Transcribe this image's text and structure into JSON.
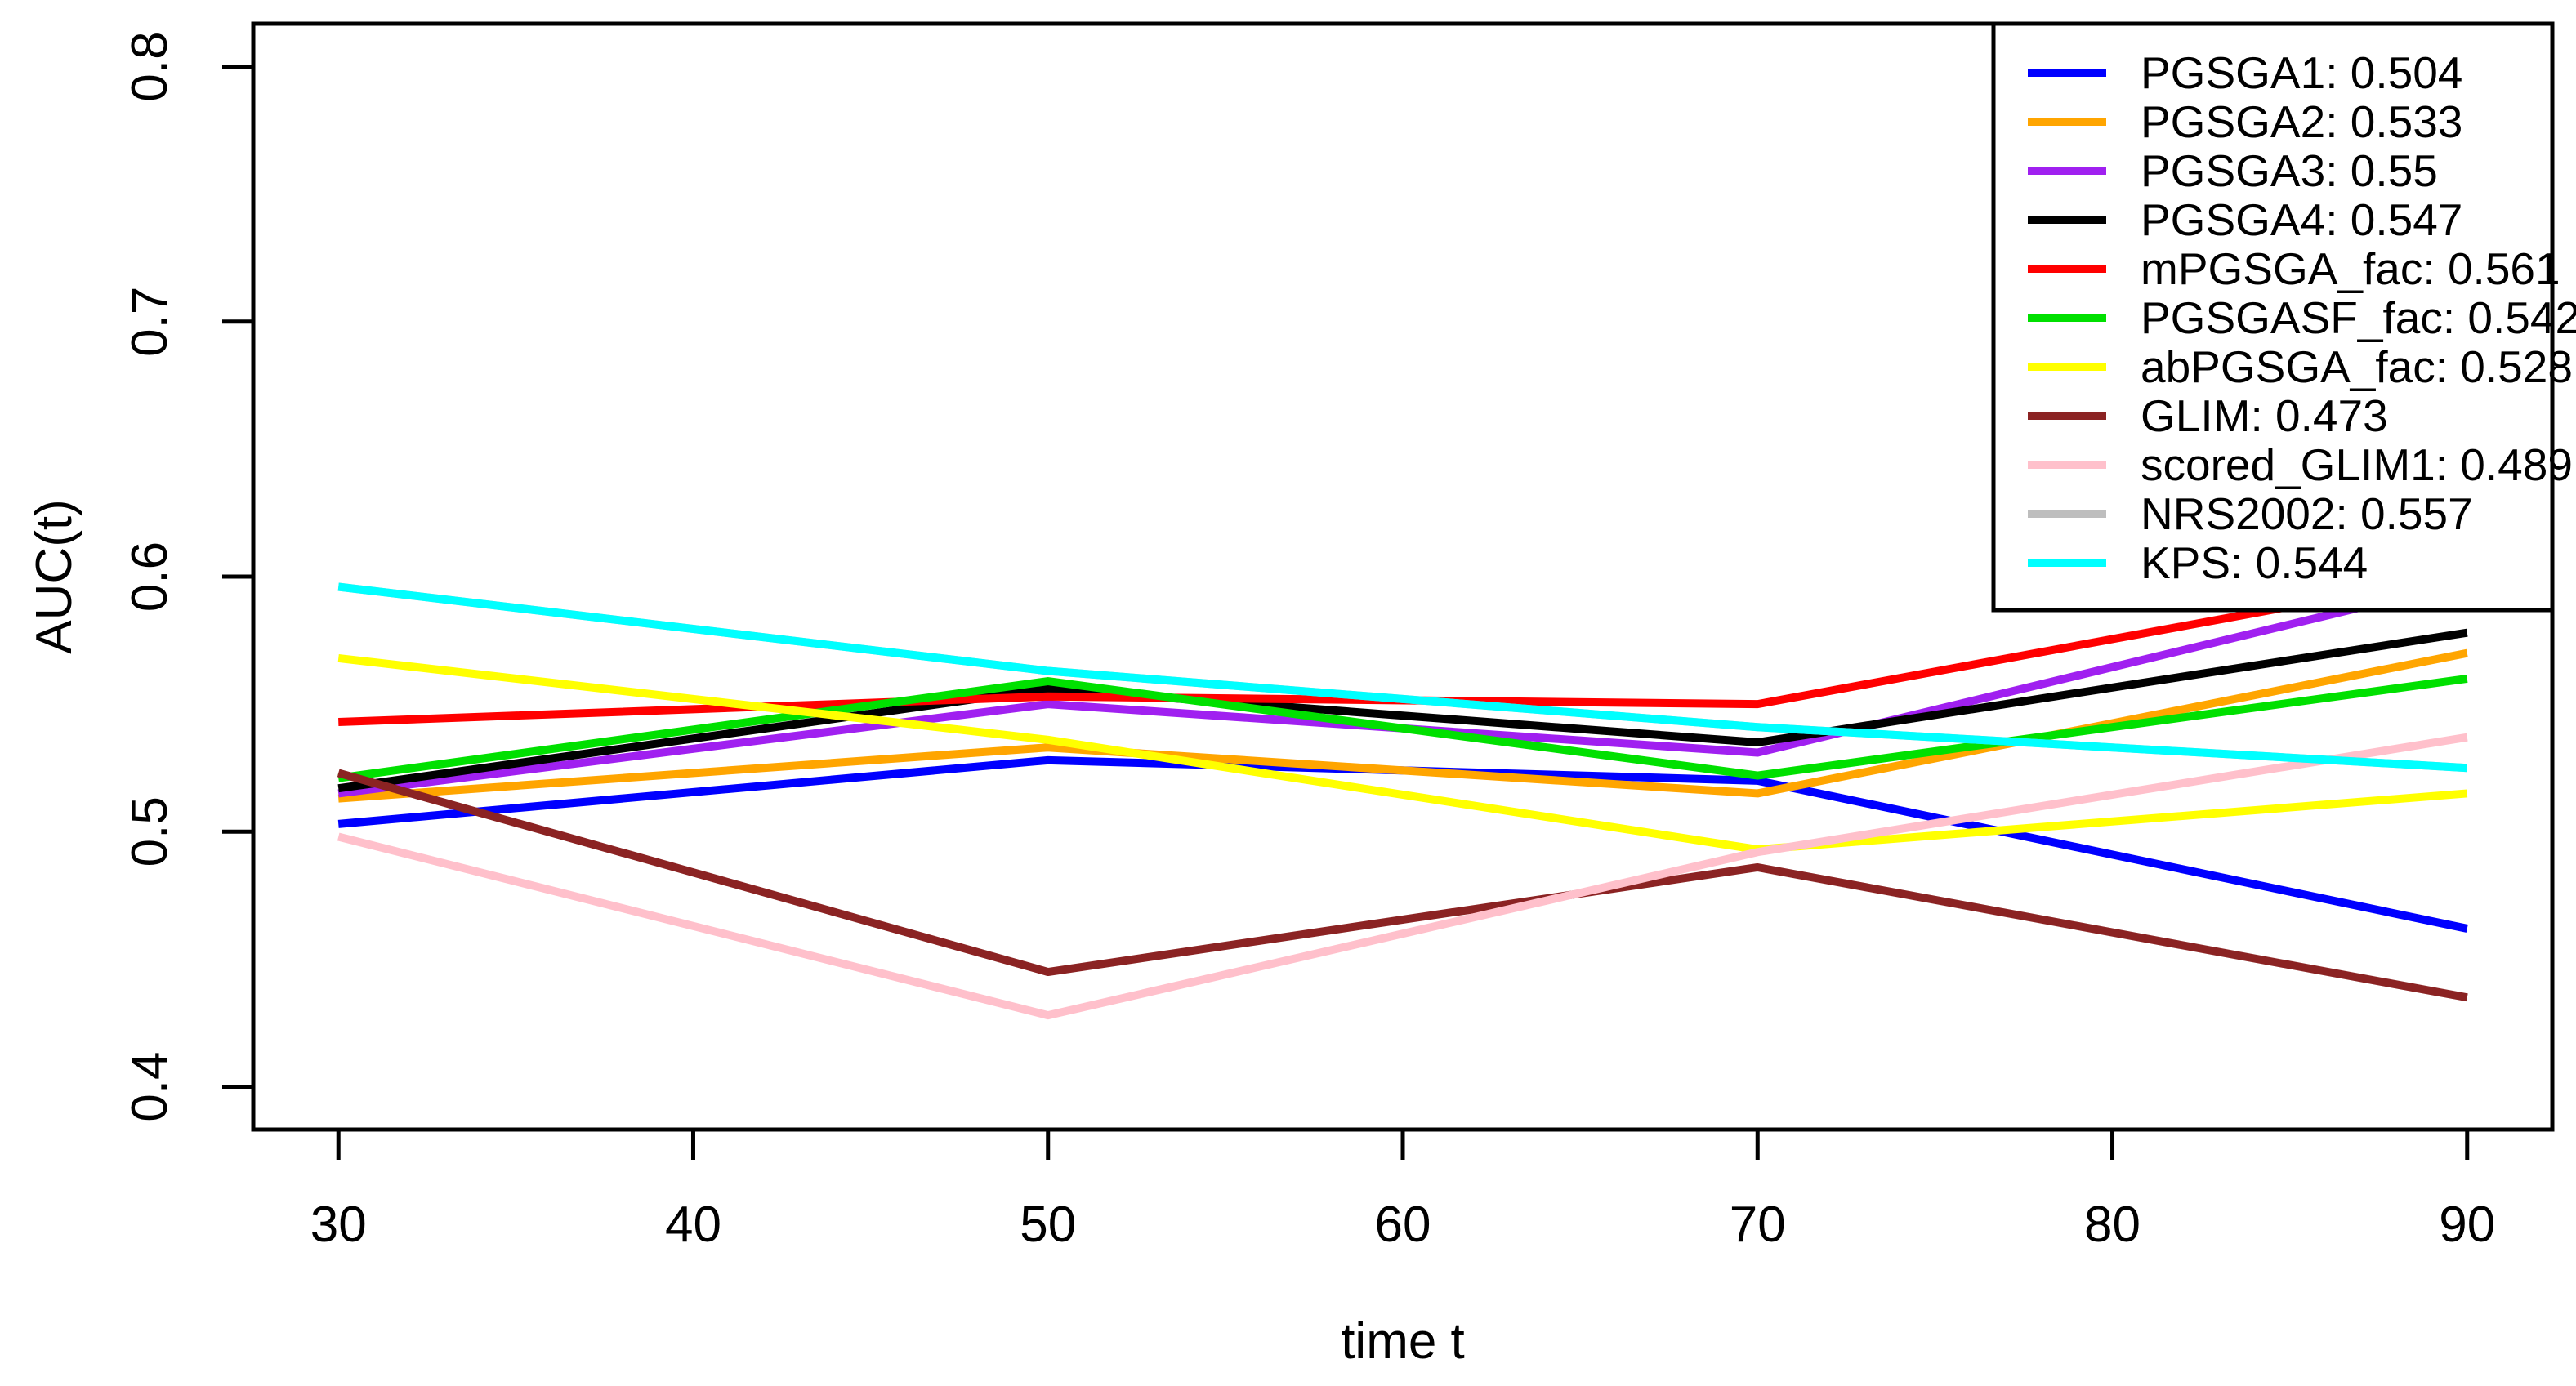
{
  "chart_data": {
    "type": "line",
    "title": "",
    "xlabel": "time t",
    "ylabel": "AUC(t)",
    "x": [
      30,
      50,
      70,
      90
    ],
    "x_tick_labels": [
      "30",
      "40",
      "50",
      "60",
      "70",
      "80",
      "90"
    ],
    "y_tick_labels": [
      "0.4",
      "0.5",
      "0.6",
      "0.7",
      "0.8"
    ],
    "xlim": [
      27.6,
      92.4
    ],
    "ylim": [
      0.3832,
      0.8168
    ],
    "grid": false,
    "legend_position": "topright",
    "series": [
      {
        "name": "PGSGA1",
        "color": "#0000FF",
        "legend_label": "PGSGA1: 0.504",
        "values": [
          0.503,
          0.528,
          0.52,
          0.462
        ]
      },
      {
        "name": "PGSGA2",
        "color": "#FFA500",
        "legend_label": "PGSGA2: 0.533",
        "values": [
          0.513,
          0.533,
          0.515,
          0.57
        ]
      },
      {
        "name": "PGSGA3",
        "color": "#A020F0",
        "legend_label": "PGSGA3: 0.55",
        "values": [
          0.515,
          0.55,
          0.531,
          0.598
        ]
      },
      {
        "name": "PGSGA4",
        "color": "#000000",
        "legend_label": "PGSGA4: 0.547",
        "values": [
          0.517,
          0.556,
          0.535,
          0.578
        ]
      },
      {
        "name": "mPGSGA_fac",
        "color": "#FF0000",
        "legend_label": "mPGSGA_fac: 0.561",
        "values": [
          0.543,
          0.553,
          0.55,
          0.601
        ]
      },
      {
        "name": "PGSGASF_fac",
        "color": "#00E000",
        "legend_label": "PGSGASF_fac: 0.542",
        "values": [
          0.521,
          0.559,
          0.522,
          0.56
        ]
      },
      {
        "name": "abPGSGA_fac",
        "color": "#FFFF00",
        "legend_label": "abPGSGA_fac: 0.528",
        "values": [
          0.568,
          0.536,
          0.493,
          0.515
        ]
      },
      {
        "name": "GLIM",
        "color": "#8B2323",
        "legend_label": "GLIM: 0.473",
        "values": [
          0.523,
          0.445,
          0.486,
          0.435
        ]
      },
      {
        "name": "scored_GLIM1",
        "color": "#FFC0CB",
        "legend_label": "scored_GLIM1: 0.489",
        "values": [
          0.498,
          0.428,
          0.492,
          0.537
        ]
      },
      {
        "name": "NRS2002",
        "color": "#BEBEBE",
        "legend_label": "NRS2002: 0.557",
        "values": [
          0.596,
          0.563,
          0.541,
          0.525
        ],
        "hidden_behind": "KPS"
      },
      {
        "name": "KPS",
        "color": "#00FFFF",
        "legend_label": "KPS: 0.544",
        "values": [
          0.596,
          0.563,
          0.541,
          0.525
        ]
      }
    ]
  },
  "layout_colors": {
    "background": "#FFFFFF",
    "axis": "#000000",
    "legend_border": "#000000",
    "legend_background": "#FFFFFF"
  }
}
